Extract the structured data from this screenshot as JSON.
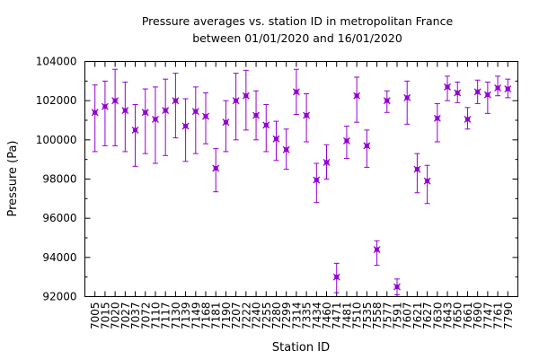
{
  "chart_data": {
    "type": "scatter",
    "title": "Pressure averages vs. station ID in metropolitan France",
    "subtitle": "between 01/01/2020 and 16/01/2020",
    "xlabel": "Station ID",
    "ylabel": "Pressure (Pa)",
    "ylim": [
      92000,
      104000
    ],
    "yticks": [
      "92000",
      "94000",
      "96000",
      "98000",
      "100000",
      "102000",
      "104000"
    ],
    "grid": false,
    "marker_color": "#9400d3",
    "error_bars": true,
    "categories": [
      "7005",
      "7015",
      "7020",
      "7027",
      "7037",
      "7072",
      "7110",
      "7117",
      "7130",
      "7139",
      "7149",
      "7168",
      "7181",
      "7190",
      "7207",
      "7222",
      "7240",
      "7255",
      "7280",
      "7299",
      "7314",
      "7335",
      "7434",
      "7460",
      "7471",
      "7481",
      "7510",
      "7535",
      "7558",
      "7577",
      "7591",
      "7607",
      "7621",
      "7627",
      "7630",
      "7643",
      "7650",
      "7661",
      "7690",
      "7747",
      "7761",
      "7790"
    ],
    "series": [
      {
        "values": [
          101400,
          101700,
          102000,
          101500,
          100500,
          101400,
          101050,
          101500,
          102000,
          100700,
          101450,
          101200,
          98550,
          100900,
          102000,
          102250,
          101250,
          100750,
          100050,
          99500,
          102450,
          101250,
          97950,
          98850,
          93000,
          99950,
          102250,
          99700,
          94400,
          102000,
          92500,
          102150,
          98500,
          97900,
          101100,
          102700,
          102400,
          101050,
          102450,
          102300,
          102650,
          102600
        ],
        "err_low": [
          99400,
          99700,
          99700,
          99400,
          98650,
          99300,
          98800,
          99200,
          100100,
          98900,
          99300,
          99800,
          97350,
          99400,
          100000,
          100500,
          100000,
          99400,
          98950,
          98500,
          101300,
          99900,
          96800,
          98000,
          92200,
          99050,
          100900,
          98600,
          93600,
          101400,
          92100,
          100800,
          97300,
          96750,
          99900,
          102000,
          101900,
          100550,
          101850,
          101350,
          102250,
          102150
        ],
        "err_high": [
          102800,
          103000,
          103600,
          102950,
          101800,
          102600,
          102700,
          103100,
          103400,
          102100,
          102700,
          102400,
          99550,
          102000,
          103400,
          103550,
          102500,
          101800,
          100950,
          100550,
          103600,
          102350,
          98800,
          99750,
          93700,
          100700,
          103200,
          100500,
          94850,
          102500,
          92900,
          103000,
          99300,
          98700,
          101850,
          103250,
          102950,
          101650,
          103050,
          102950,
          103250,
          103100
        ]
      }
    ]
  }
}
